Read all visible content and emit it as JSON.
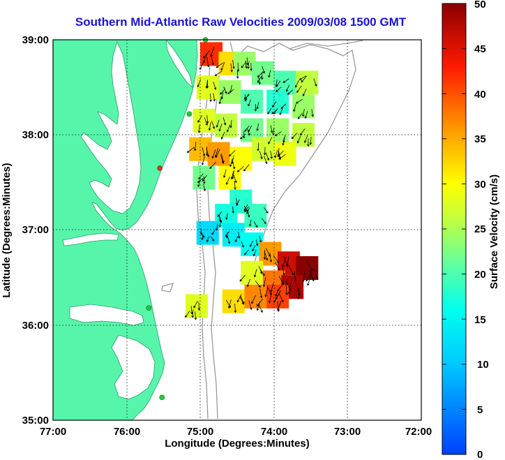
{
  "title": "Southern Mid-Atlantic Raw Velocities 2009/03/08 1500 GMT",
  "axes": {
    "xlabel": "Longitude (Degrees:Minutes)",
    "ylabel": "Latitude (Degrees:Minutes)",
    "x_ticks": [
      "77:00",
      "76:00",
      "75:00",
      "74:00",
      "73:00",
      "72:00"
    ],
    "y_ticks": [
      "39:00",
      "38:00",
      "37:00",
      "36:00",
      "35:00"
    ]
  },
  "colorbar": {
    "label": "Surface Velocity (cm/s)",
    "ticks": [
      "50",
      "45",
      "40",
      "35",
      "30",
      "25",
      "20",
      "15",
      "10",
      "5",
      "0"
    ],
    "min": 0,
    "max": 50
  },
  "colors": {
    "land": "#57f5aa",
    "title": "#1a12d6",
    "station": "#22cc33",
    "station_alt": "#dd3322"
  },
  "chart_data": {
    "type": "heatmap",
    "title": "Southern Mid-Atlantic Raw Velocities 2009/03/08 1500 GMT",
    "xlabel": "Longitude (Degrees:Minutes)",
    "ylabel": "Latitude (Degrees:Minutes)",
    "xlim": [
      -77,
      -72
    ],
    "ylim": [
      35,
      39
    ],
    "colorbar_range": [
      0,
      50
    ],
    "colorbar_label": "Surface Velocity (cm/s)",
    "grid": true,
    "velocity_cells": [
      {
        "lon": -74.85,
        "lat": 38.85,
        "v": 42
      },
      {
        "lon": -74.6,
        "lat": 38.75,
        "v": 32
      },
      {
        "lon": -74.4,
        "lat": 38.75,
        "v": 24
      },
      {
        "lon": -74.15,
        "lat": 38.65,
        "v": 22
      },
      {
        "lon": -73.85,
        "lat": 38.55,
        "v": 20
      },
      {
        "lon": -73.55,
        "lat": 38.55,
        "v": 26
      },
      {
        "lon": -74.9,
        "lat": 38.5,
        "v": 28
      },
      {
        "lon": -74.6,
        "lat": 38.45,
        "v": 24
      },
      {
        "lon": -74.3,
        "lat": 38.35,
        "v": 20
      },
      {
        "lon": -73.95,
        "lat": 38.35,
        "v": 18
      },
      {
        "lon": -73.6,
        "lat": 38.3,
        "v": 24
      },
      {
        "lon": -74.95,
        "lat": 38.15,
        "v": 28
      },
      {
        "lon": -74.65,
        "lat": 38.1,
        "v": 26
      },
      {
        "lon": -74.3,
        "lat": 38.05,
        "v": 22
      },
      {
        "lon": -73.95,
        "lat": 38.05,
        "v": 24
      },
      {
        "lon": -73.6,
        "lat": 38.0,
        "v": 26
      },
      {
        "lon": -75.0,
        "lat": 37.85,
        "v": 34
      },
      {
        "lon": -74.75,
        "lat": 37.8,
        "v": 36
      },
      {
        "lon": -74.45,
        "lat": 37.75,
        "v": 30
      },
      {
        "lon": -74.15,
        "lat": 37.85,
        "v": 27
      },
      {
        "lon": -73.85,
        "lat": 37.8,
        "v": 29
      },
      {
        "lon": -74.95,
        "lat": 37.55,
        "v": 22
      },
      {
        "lon": -74.6,
        "lat": 37.55,
        "v": 30
      },
      {
        "lon": -74.45,
        "lat": 37.3,
        "v": 18
      },
      {
        "lon": -74.65,
        "lat": 37.15,
        "v": 17
      },
      {
        "lon": -74.25,
        "lat": 37.15,
        "v": 19
      },
      {
        "lon": -74.9,
        "lat": 36.97,
        "v": 12
      },
      {
        "lon": -74.55,
        "lat": 36.95,
        "v": 14
      },
      {
        "lon": -74.3,
        "lat": 36.85,
        "v": 16
      },
      {
        "lon": -74.05,
        "lat": 36.75,
        "v": 36
      },
      {
        "lon": -73.8,
        "lat": 36.65,
        "v": 46
      },
      {
        "lon": -73.55,
        "lat": 36.6,
        "v": 50
      },
      {
        "lon": -74.3,
        "lat": 36.55,
        "v": 28
      },
      {
        "lon": -74.0,
        "lat": 36.45,
        "v": 38
      },
      {
        "lon": -73.75,
        "lat": 36.4,
        "v": 48
      },
      {
        "lon": -74.55,
        "lat": 36.25,
        "v": 32
      },
      {
        "lon": -74.25,
        "lat": 36.3,
        "v": 37
      },
      {
        "lon": -73.95,
        "lat": 36.3,
        "v": 41
      },
      {
        "lon": -75.05,
        "lat": 36.2,
        "v": 28
      }
    ],
    "stations": [
      {
        "lon": -74.93,
        "lat": 39.0,
        "type": "site"
      },
      {
        "lon": -75.15,
        "lat": 38.22,
        "type": "site"
      },
      {
        "lon": -75.55,
        "lat": 37.65,
        "type": "alt"
      },
      {
        "lon": -75.7,
        "lat": 36.18,
        "type": "site"
      },
      {
        "lon": -75.52,
        "lat": 35.24,
        "type": "site"
      }
    ]
  }
}
